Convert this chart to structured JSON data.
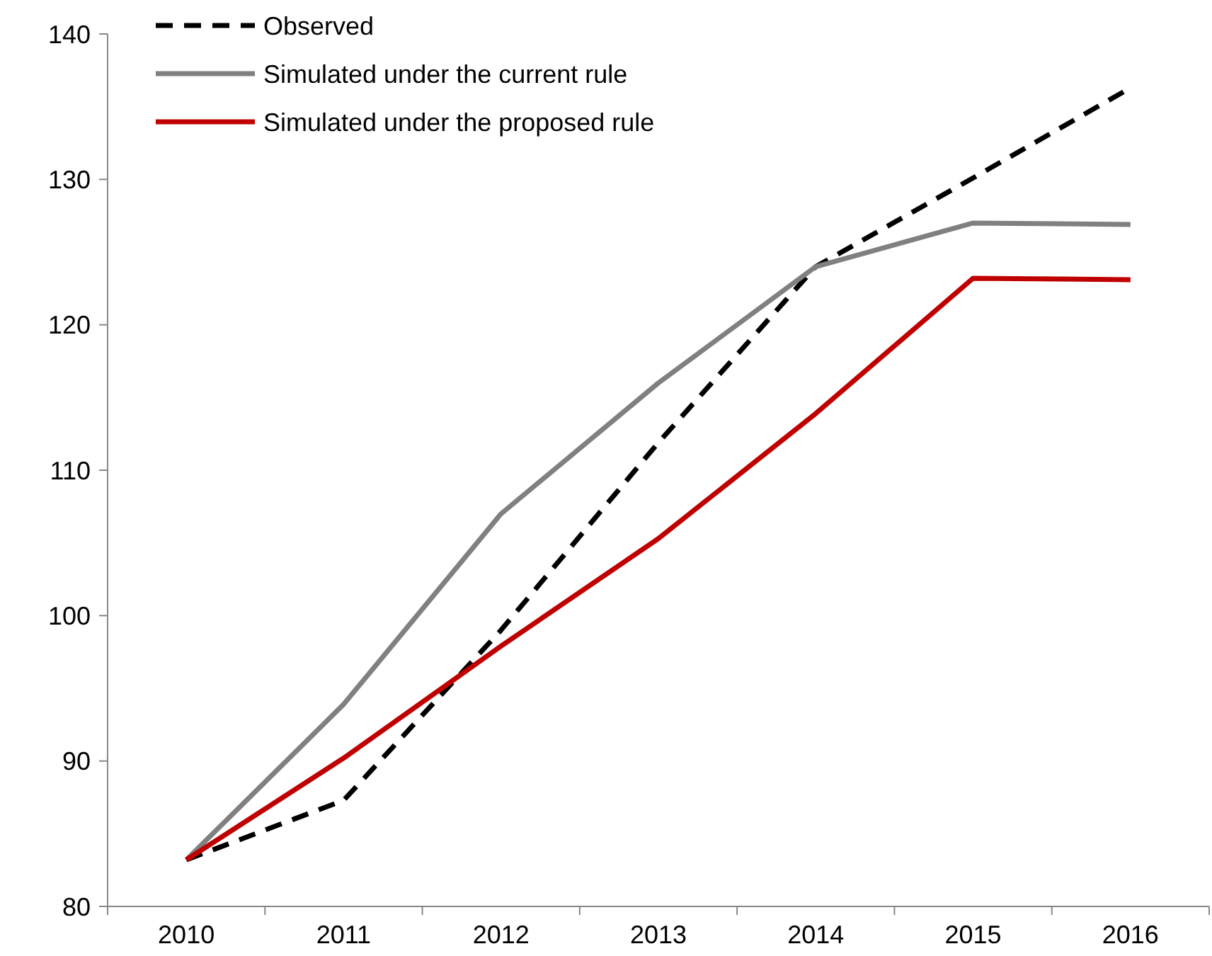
{
  "chart_data": {
    "type": "line",
    "categories": [
      "2010",
      "2011",
      "2012",
      "2013",
      "2014",
      "2015",
      "2016"
    ],
    "series": [
      {
        "name": "Observed",
        "color": "#000000",
        "line_style": "dashed",
        "values": [
          83.2,
          87.3,
          99.0,
          111.9,
          124.0,
          130.1,
          136.3
        ]
      },
      {
        "name": "Simulated under the current rule",
        "color": "#808080",
        "line_style": "solid",
        "values": [
          83.2,
          93.9,
          107.0,
          116.0,
          124.0,
          127.0,
          126.9
        ]
      },
      {
        "name": "Simulated under the proposed rule",
        "color": "#c00000",
        "line_style": "solid",
        "values": [
          83.2,
          90.2,
          97.9,
          105.3,
          113.9,
          123.2,
          123.1
        ]
      }
    ],
    "ylim": [
      80,
      140
    ],
    "yticks": [
      80,
      90,
      100,
      110,
      120,
      130,
      140
    ],
    "grid": false,
    "legend": "top left",
    "marker": "none"
  }
}
